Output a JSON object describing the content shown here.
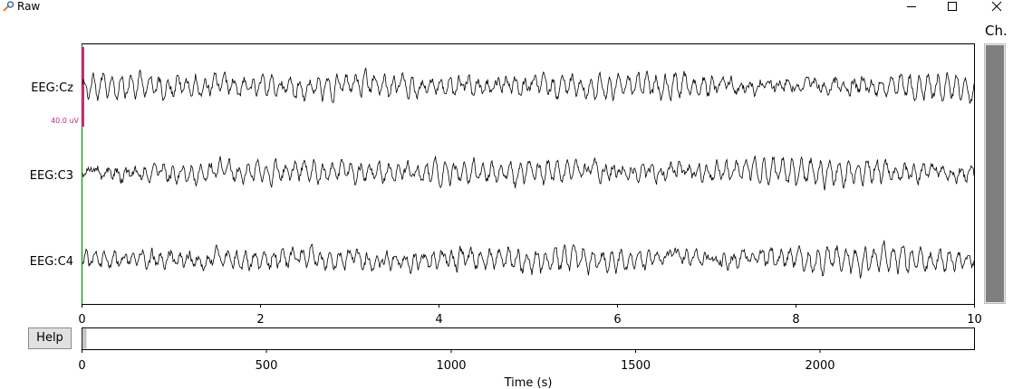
{
  "window": {
    "title": "Raw"
  },
  "channels": [
    {
      "name": "EEG:Cz"
    },
    {
      "name": "EEG:C3"
    },
    {
      "name": "EEG:C4"
    }
  ],
  "scale_bar": {
    "label": "40.0 uV",
    "color": "#c0307a"
  },
  "time_axis": {
    "ticks": [
      "0",
      "2",
      "4",
      "6",
      "8",
      "10"
    ],
    "range_s": [
      0,
      10
    ]
  },
  "overview_axis": {
    "ticks": [
      "0",
      "500",
      "1000",
      "1500",
      "2000"
    ],
    "xlabel": "Time (s)",
    "range_s": [
      0,
      2420
    ],
    "view_window_s": [
      0,
      10
    ]
  },
  "help_button": {
    "label": "Help"
  },
  "channel_scroll": {
    "label": "Ch."
  },
  "colors": {
    "trace": "#000000",
    "time_marker": "#2ca02c",
    "view_window": "#c0c0c0"
  }
}
